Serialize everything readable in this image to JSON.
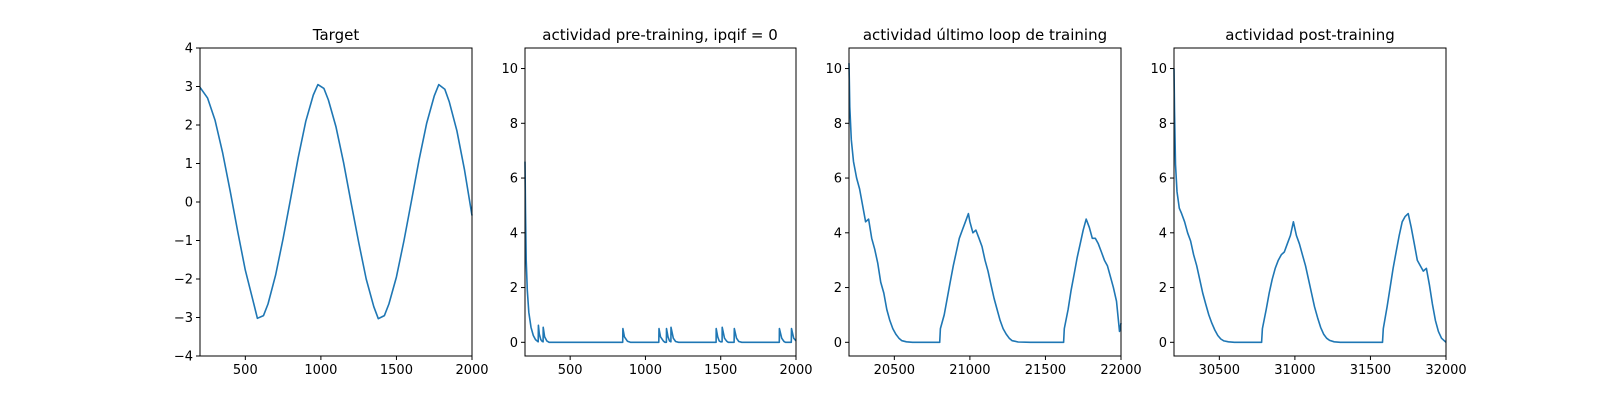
{
  "chart_data": [
    {
      "type": "line",
      "title": "Target",
      "xlim": [
        200,
        2000
      ],
      "ylim": [
        -4,
        4
      ],
      "xticks": [
        500,
        1000,
        1500,
        2000
      ],
      "yticks": [
        -4,
        -3,
        -2,
        -1,
        0,
        1,
        2,
        3,
        4
      ],
      "ytick_labels": [
        "−4",
        "−3",
        "−2",
        "−1",
        "0",
        "1",
        "2",
        "3",
        "4"
      ],
      "series": [
        {
          "x": [
            200,
            250,
            300,
            350,
            400,
            450,
            500,
            550,
            580,
            620,
            650,
            700,
            750,
            800,
            850,
            900,
            950,
            980,
            1020,
            1050,
            1100,
            1150,
            1200,
            1250,
            1300,
            1350,
            1380,
            1420,
            1450,
            1500,
            1550,
            1600,
            1650,
            1700,
            1750,
            1780,
            1820,
            1850,
            1900,
            1950,
            2000
          ],
          "values": [
            2.98,
            2.7,
            2.12,
            1.27,
            0.28,
            -0.78,
            -1.77,
            -2.55,
            -3.02,
            -2.95,
            -2.65,
            -1.9,
            -0.95,
            0.1,
            1.15,
            2.1,
            2.78,
            3.05,
            2.95,
            2.65,
            1.95,
            1.02,
            -0.02,
            -1.05,
            -2.0,
            -2.72,
            -3.03,
            -2.95,
            -2.65,
            -1.95,
            -1.0,
            0.05,
            1.1,
            2.05,
            2.75,
            3.05,
            2.93,
            2.6,
            1.85,
            0.85,
            -0.35
          ]
        }
      ]
    },
    {
      "type": "line",
      "title": "actividad pre-training, ipqif = 0",
      "xlim": [
        200,
        2000
      ],
      "ylim": [
        -0.5,
        10.75
      ],
      "xticks": [
        500,
        1000,
        1500,
        2000
      ],
      "yticks": [
        0,
        2,
        4,
        6,
        8,
        10
      ],
      "ytick_labels": [
        "0",
        "2",
        "4",
        "6",
        "8",
        "10"
      ],
      "series": [
        {
          "x": [
            200,
            203,
            208,
            215,
            225,
            240,
            255,
            270,
            280,
            288,
            289,
            295,
            305,
            315,
            320,
            321,
            330,
            345,
            360,
            840,
            849,
            850,
            860,
            880,
            900,
            1080,
            1089,
            1090,
            1100,
            1120,
            1130,
            1139,
            1140,
            1150,
            1160,
            1169,
            1170,
            1185,
            1200,
            1220,
            1460,
            1469,
            1470,
            1480,
            1490,
            1500,
            1509,
            1510,
            1525,
            1540,
            1550,
            1580,
            1589,
            1590,
            1605,
            1620,
            1640,
            1880,
            1889,
            1890,
            1905,
            1920,
            1930,
            1960,
            1969,
            1970,
            1985,
            2000
          ],
          "values": [
            6.6,
            4.8,
            3.0,
            1.9,
            1.1,
            0.55,
            0.25,
            0.1,
            0.05,
            0.02,
            0.62,
            0.3,
            0.1,
            0.03,
            0.02,
            0.55,
            0.2,
            0.05,
            0.0,
            0.0,
            0.0,
            0.5,
            0.2,
            0.04,
            0.0,
            0.0,
            0.0,
            0.5,
            0.2,
            0.04,
            0.0,
            0.0,
            0.5,
            0.2,
            0.05,
            0.02,
            0.55,
            0.15,
            0.03,
            0.0,
            0.0,
            0.0,
            0.5,
            0.2,
            0.05,
            0.02,
            0.02,
            0.55,
            0.15,
            0.04,
            0.0,
            0.0,
            0.0,
            0.5,
            0.15,
            0.03,
            0.0,
            0.0,
            0.0,
            0.5,
            0.15,
            0.03,
            0.0,
            0.0,
            0.0,
            0.5,
            0.15,
            0.05
          ]
        }
      ]
    },
    {
      "type": "line",
      "title": "actividad último loop de training",
      "xlim": [
        20200,
        22000
      ],
      "ylim": [
        -0.5,
        10.75
      ],
      "xticks": [
        20500,
        21000,
        21500,
        22000
      ],
      "yticks": [
        0,
        2,
        4,
        6,
        8,
        10
      ],
      "ytick_labels": [
        "0",
        "2",
        "4",
        "6",
        "8",
        "10"
      ],
      "series": [
        {
          "x": [
            20200,
            20205,
            20215,
            20230,
            20250,
            20270,
            20290,
            20310,
            20330,
            20350,
            20370,
            20390,
            20410,
            20430,
            20450,
            20470,
            20490,
            20510,
            20530,
            20550,
            20580,
            20620,
            20700,
            20800,
            20805,
            20830,
            20850,
            20870,
            20890,
            20910,
            20930,
            20950,
            20970,
            20990,
            21000,
            21020,
            21040,
            21060,
            21080,
            21100,
            21120,
            21140,
            21160,
            21180,
            21200,
            21220,
            21240,
            21260,
            21280,
            21320,
            21400,
            21620,
            21625,
            21650,
            21670,
            21690,
            21710,
            21730,
            21750,
            21770,
            21790,
            21810,
            21830,
            21850,
            21870,
            21890,
            21910,
            21930,
            21950,
            21970,
            21990,
            22000
          ],
          "values": [
            10.2,
            8.6,
            7.4,
            6.6,
            6.0,
            5.6,
            5.0,
            4.4,
            4.5,
            3.8,
            3.4,
            2.9,
            2.2,
            1.8,
            1.2,
            0.8,
            0.5,
            0.3,
            0.15,
            0.06,
            0.02,
            0.0,
            0.0,
            0.0,
            0.5,
            1.0,
            1.6,
            2.2,
            2.8,
            3.3,
            3.8,
            4.1,
            4.4,
            4.7,
            4.4,
            4.0,
            4.1,
            3.8,
            3.5,
            3.0,
            2.6,
            2.1,
            1.6,
            1.2,
            0.8,
            0.5,
            0.3,
            0.15,
            0.06,
            0.01,
            0.0,
            0.0,
            0.5,
            1.2,
            1.9,
            2.5,
            3.1,
            3.6,
            4.1,
            4.5,
            4.2,
            3.8,
            3.8,
            3.6,
            3.3,
            3.0,
            2.8,
            2.4,
            2.0,
            1.5,
            0.4,
            0.7
          ]
        }
      ]
    },
    {
      "type": "line",
      "title": "actividad post-training",
      "xlim": [
        30200,
        32000
      ],
      "ylim": [
        -0.5,
        10.75
      ],
      "xticks": [
        30500,
        31000,
        31500,
        32000
      ],
      "yticks": [
        0,
        2,
        4,
        6,
        8,
        10
      ],
      "ytick_labels": [
        "0",
        "2",
        "4",
        "6",
        "8",
        "10"
      ],
      "series": [
        {
          "x": [
            30200,
            30203,
            30210,
            30220,
            30235,
            30250,
            30270,
            30290,
            30310,
            30330,
            30350,
            30370,
            30390,
            30410,
            30430,
            30450,
            30470,
            30490,
            30510,
            30530,
            30560,
            30600,
            30700,
            30780,
            30785,
            30810,
            30830,
            30850,
            30870,
            30890,
            30910,
            30930,
            30950,
            30970,
            30990,
            31010,
            31030,
            31050,
            31070,
            31090,
            31110,
            31130,
            31150,
            31170,
            31190,
            31210,
            31230,
            31260,
            31300,
            31400,
            31580,
            31585,
            31610,
            31630,
            31650,
            31670,
            31690,
            31710,
            31730,
            31750,
            31770,
            31790,
            31810,
            31830,
            31850,
            31870,
            31890,
            31910,
            31930,
            31950,
            31970,
            32000
          ],
          "values": [
            10.0,
            8.5,
            6.5,
            5.5,
            4.9,
            4.7,
            4.4,
            4.0,
            3.7,
            3.2,
            2.8,
            2.3,
            1.8,
            1.4,
            1.0,
            0.7,
            0.45,
            0.25,
            0.12,
            0.05,
            0.02,
            0.0,
            0.0,
            0.0,
            0.5,
            1.2,
            1.8,
            2.3,
            2.7,
            3.0,
            3.2,
            3.3,
            3.6,
            3.9,
            4.4,
            3.9,
            3.6,
            3.2,
            2.8,
            2.3,
            1.8,
            1.3,
            0.9,
            0.55,
            0.3,
            0.15,
            0.07,
            0.02,
            0.0,
            0.0,
            0.0,
            0.5,
            1.3,
            2.0,
            2.7,
            3.3,
            3.9,
            4.4,
            4.6,
            4.7,
            4.2,
            3.6,
            3.0,
            2.8,
            2.6,
            2.7,
            2.1,
            1.4,
            0.8,
            0.4,
            0.15,
            0.0
          ]
        }
      ]
    }
  ]
}
